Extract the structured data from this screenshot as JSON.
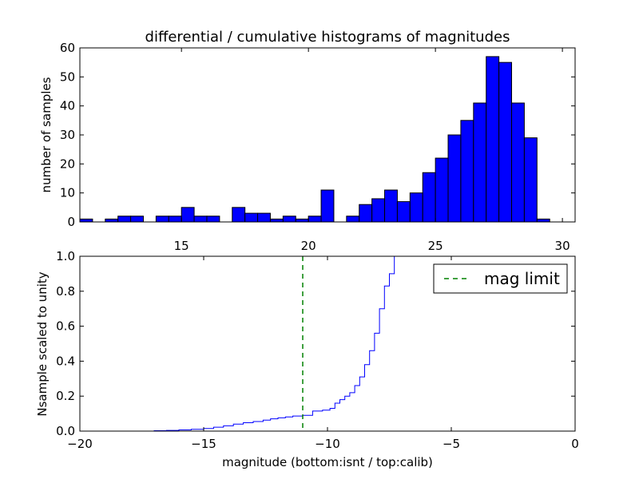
{
  "chart_data": [
    {
      "type": "bar",
      "title": "differential / cumulative histograms of magnitudes",
      "xlabel": "",
      "ylabel": "number of samples",
      "xlim": [
        11,
        30.5
      ],
      "ylim": [
        0,
        60
      ],
      "xticks": [
        15,
        20,
        25,
        30
      ],
      "yticks": [
        0,
        10,
        20,
        30,
        40,
        50,
        60
      ],
      "bar_color": "#0000ff",
      "bins": [
        {
          "x0": 11.0,
          "x1": 11.5,
          "value": 1
        },
        {
          "x0": 11.5,
          "x1": 12.0,
          "value": 0
        },
        {
          "x0": 12.0,
          "x1": 12.5,
          "value": 1
        },
        {
          "x0": 12.5,
          "x1": 13.0,
          "value": 2
        },
        {
          "x0": 13.0,
          "x1": 13.5,
          "value": 2
        },
        {
          "x0": 13.5,
          "x1": 14.0,
          "value": 0
        },
        {
          "x0": 14.0,
          "x1": 14.5,
          "value": 2
        },
        {
          "x0": 14.5,
          "x1": 15.0,
          "value": 2
        },
        {
          "x0": 15.0,
          "x1": 15.5,
          "value": 5
        },
        {
          "x0": 15.5,
          "x1": 16.0,
          "value": 2
        },
        {
          "x0": 16.0,
          "x1": 16.5,
          "value": 2
        },
        {
          "x0": 16.5,
          "x1": 17.0,
          "value": 0
        },
        {
          "x0": 17.0,
          "x1": 17.5,
          "value": 5
        },
        {
          "x0": 17.5,
          "x1": 18.0,
          "value": 3
        },
        {
          "x0": 18.0,
          "x1": 18.5,
          "value": 3
        },
        {
          "x0": 18.5,
          "x1": 19.0,
          "value": 1
        },
        {
          "x0": 19.0,
          "x1": 19.5,
          "value": 2
        },
        {
          "x0": 19.5,
          "x1": 20.0,
          "value": 1
        },
        {
          "x0": 20.0,
          "x1": 20.5,
          "value": 2
        },
        {
          "x0": 20.5,
          "x1": 21.0,
          "value": 11
        },
        {
          "x0": 21.0,
          "x1": 21.5,
          "value": 0
        },
        {
          "x0": 21.5,
          "x1": 22.0,
          "value": 2
        },
        {
          "x0": 22.0,
          "x1": 22.5,
          "value": 6
        },
        {
          "x0": 22.5,
          "x1": 23.0,
          "value": 8
        },
        {
          "x0": 23.0,
          "x1": 23.5,
          "value": 11
        },
        {
          "x0": 23.5,
          "x1": 24.0,
          "value": 7
        },
        {
          "x0": 24.0,
          "x1": 24.5,
          "value": 10
        },
        {
          "x0": 24.5,
          "x1": 25.0,
          "value": 17
        },
        {
          "x0": 25.0,
          "x1": 25.5,
          "value": 22
        },
        {
          "x0": 25.5,
          "x1": 26.0,
          "value": 30
        },
        {
          "x0": 26.0,
          "x1": 26.5,
          "value": 35
        },
        {
          "x0": 26.5,
          "x1": 27.0,
          "value": 41
        },
        {
          "x0": 27.0,
          "x1": 27.5,
          "value": 57
        },
        {
          "x0": 27.5,
          "x1": 28.0,
          "value": 55
        },
        {
          "x0": 28.0,
          "x1": 28.5,
          "value": 41
        },
        {
          "x0": 28.5,
          "x1": 29.0,
          "value": 29
        },
        {
          "x0": 29.0,
          "x1": 29.5,
          "value": 1
        }
      ]
    },
    {
      "type": "line",
      "title": "",
      "xlabel": "magnitude (bottom:isnt / top:calib)",
      "ylabel": "Nsample scaled to unity",
      "xlim": [
        -20,
        0
      ],
      "ylim": [
        0,
        1
      ],
      "xticks": [
        -20,
        -15,
        -10,
        -5,
        0
      ],
      "yticks": [
        0.0,
        0.2,
        0.4,
        0.6,
        0.8,
        1.0
      ],
      "legend": {
        "position": "top-right",
        "entries": [
          "mag limit"
        ]
      },
      "series": [
        {
          "style": "step",
          "color": "#0000ff",
          "x": [
            -20.0,
            -17.0,
            -16.5,
            -16.0,
            -15.5,
            -15.0,
            -14.6,
            -14.2,
            -13.8,
            -13.4,
            -13.0,
            -12.6,
            -12.3,
            -12.0,
            -11.7,
            -11.4,
            -11.0,
            -10.6,
            -10.2,
            -9.9,
            -9.7,
            -9.5,
            -9.3,
            -9.1,
            -8.9,
            -8.7,
            -8.5,
            -8.3,
            -8.1,
            -7.9,
            -7.7,
            -7.5,
            -7.3,
            -7.0,
            -6.8
          ],
          "y": [
            0.0,
            0.002,
            0.004,
            0.007,
            0.01,
            0.015,
            0.022,
            0.03,
            0.04,
            0.048,
            0.055,
            0.063,
            0.07,
            0.076,
            0.081,
            0.086,
            0.09,
            0.115,
            0.12,
            0.13,
            0.16,
            0.18,
            0.2,
            0.22,
            0.26,
            0.31,
            0.38,
            0.46,
            0.56,
            0.7,
            0.83,
            0.9,
            1.0,
            1.0,
            1.0
          ]
        },
        {
          "name": "mag limit",
          "style": "vline-dashed",
          "color": "#008000",
          "x": [
            -11.0,
            -11.0
          ],
          "y": [
            0,
            1
          ]
        }
      ]
    }
  ]
}
